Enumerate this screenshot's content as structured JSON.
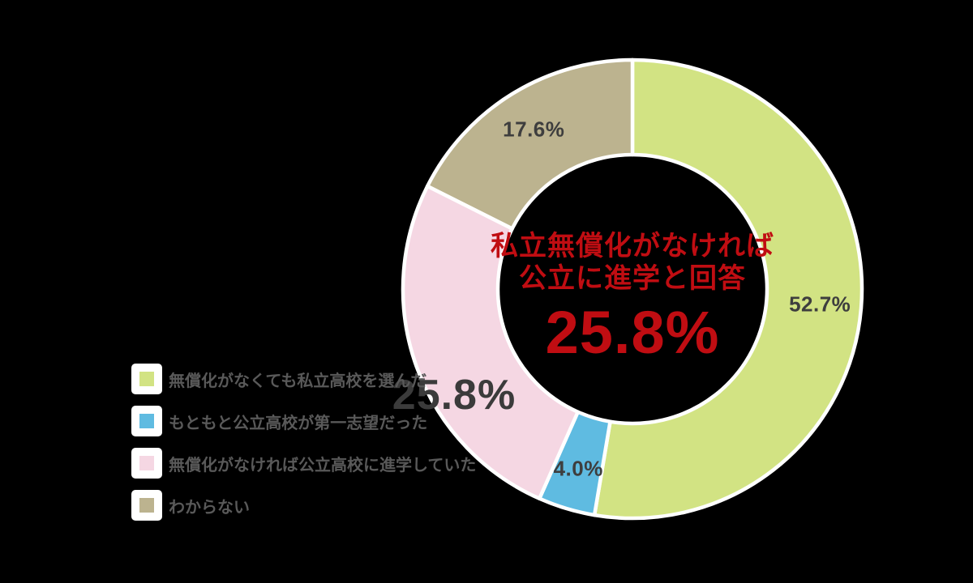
{
  "chart_data": {
    "type": "pie",
    "variant": "donut",
    "title": "",
    "legend_position": "left",
    "background_color": "#000000",
    "slice_border_color": "#FFFFFF",
    "label_color": "#3E3E3E",
    "legend_text_color": "#595959",
    "center_text": {
      "line1": "私立無償化がなければ",
      "line2": "公立に進学と回答",
      "value": "25.8%",
      "color": "#C00D12"
    },
    "slices": [
      {
        "label": "無償化がなくても私立高校を選んだ",
        "value": 52.7,
        "display": "52.7%",
        "color": "#D2E383",
        "emphasized": false
      },
      {
        "label": "もともと公立高校が第一志望だった",
        "value": 4.0,
        "display": "4.0%",
        "color": "#5FBBE1",
        "emphasized": false
      },
      {
        "label": "無償化がなければ公立高校に進学していた",
        "value": 25.8,
        "display": "25.8%",
        "color": "#F5D7E3",
        "emphasized": true
      },
      {
        "label": "わからない",
        "value": 17.6,
        "display": "17.6%",
        "color": "#BCB38F",
        "emphasized": false
      }
    ]
  }
}
